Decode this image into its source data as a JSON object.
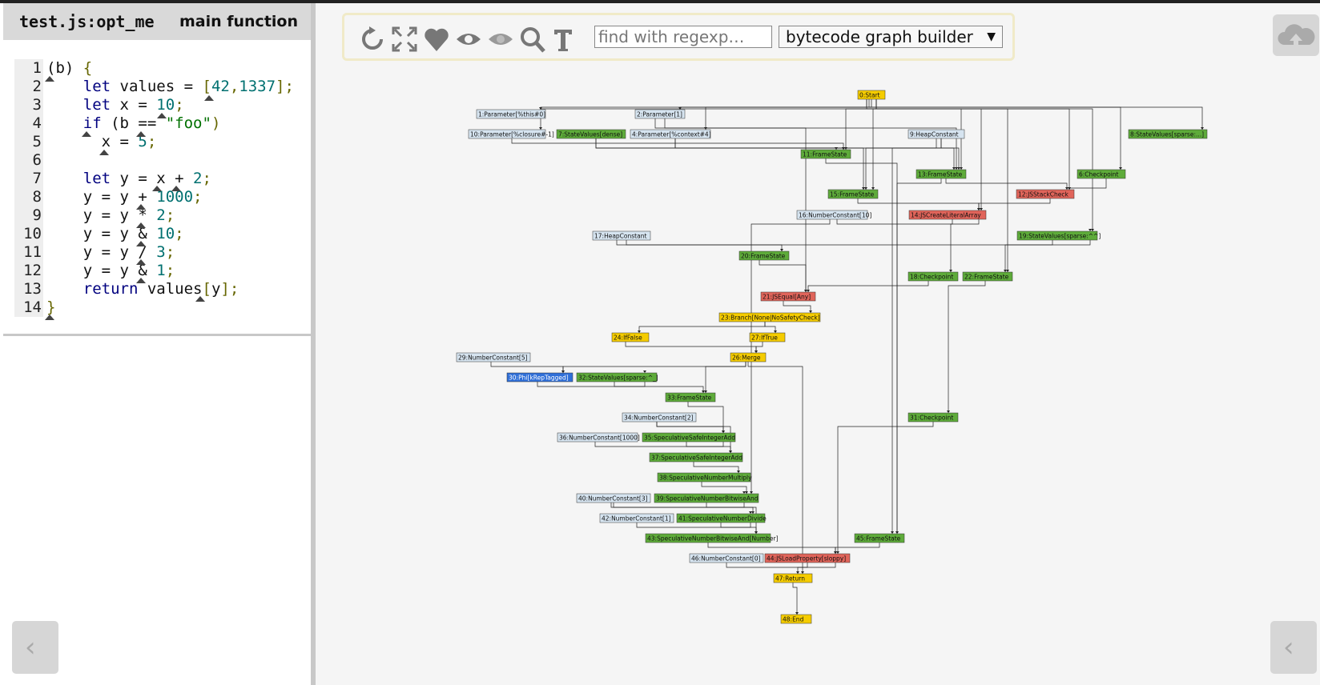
{
  "source": {
    "title": "test.js:opt_me",
    "kind": "main function",
    "lines": [
      {
        "n": "1"
      },
      {
        "n": "2"
      },
      {
        "n": "3"
      },
      {
        "n": "4"
      },
      {
        "n": "5"
      },
      {
        "n": "6"
      },
      {
        "n": "7"
      },
      {
        "n": "8"
      },
      {
        "n": "9"
      },
      {
        "n": "10"
      },
      {
        "n": "11"
      },
      {
        "n": "12"
      },
      {
        "n": "13"
      },
      {
        "n": "14"
      }
    ],
    "code_tokens": {
      "l1": [
        "(b) ",
        "{"
      ],
      "l2": [
        "let",
        " values = ",
        "[",
        "42",
        ",",
        "1337",
        "];"
      ],
      "l3": [
        "let",
        " x = ",
        "10",
        ";"
      ],
      "l4": [
        "if",
        " (b == ",
        "\"foo\"",
        ")"
      ],
      "l5": [
        "x = ",
        "5",
        ";"
      ],
      "l7": [
        "let",
        " y = x + ",
        "2",
        ";"
      ],
      "l8": [
        "y = y + ",
        "1000",
        ";"
      ],
      "l9": [
        "y = y * ",
        "2",
        ";"
      ],
      "l10": [
        "y = y & ",
        "10",
        ";"
      ],
      "l11": [
        "y = y / ",
        "3",
        ";"
      ],
      "l12": [
        "y = y & ",
        "1",
        ";"
      ],
      "l13": [
        "return",
        " values",
        "[",
        "y",
        "];"
      ],
      "l14": [
        "}"
      ]
    }
  },
  "toolbar": {
    "icons": [
      "refresh-icon",
      "fit-icon",
      "heart-icon",
      "eye-icon",
      "eye-hidden-icon",
      "search-icon",
      "type-icon"
    ],
    "search_placeholder": "find with regexp…",
    "phase_selected": "bytecode graph builder",
    "phase_arrow": "▼"
  },
  "nav": {
    "left_label": "‹",
    "right_label": "‹"
  },
  "colors": {
    "start": "#f5cc00",
    "light": "#d6e4f0",
    "green": "#5eab3a",
    "red": "#e0645a",
    "blue": "#2f6fd8"
  },
  "graph": {
    "nodes": [
      {
        "id": "0",
        "label": "0:Start",
        "c": "start"
      },
      {
        "id": "1",
        "label": "1:Parameter[%this#0]",
        "c": "light"
      },
      {
        "id": "2",
        "label": "2:Parameter[1]",
        "c": "light"
      },
      {
        "id": "10",
        "label": "10:Parameter[%closure#-1]",
        "c": "light"
      },
      {
        "id": "7",
        "label": "7:StateValues[dense]",
        "c": "green"
      },
      {
        "id": "4",
        "label": "4:Parameter[%context#4]",
        "c": "light"
      },
      {
        "id": "9",
        "label": "9:HeapConstant",
        "c": "light"
      },
      {
        "id": "8",
        "label": "8:StateValues[sparse:...]",
        "c": "green"
      },
      {
        "id": "11",
        "label": "11:FrameState",
        "c": "green"
      },
      {
        "id": "13",
        "label": "13:FrameState",
        "c": "green"
      },
      {
        "id": "6",
        "label": "6:Checkpoint",
        "c": "green"
      },
      {
        "id": "15",
        "label": "15:FrameState",
        "c": "green"
      },
      {
        "id": "12",
        "label": "12:JSStackCheck",
        "c": "red"
      },
      {
        "id": "16",
        "label": "16:NumberConstant[10]",
        "c": "light"
      },
      {
        "id": "14",
        "label": "14:JSCreateLiteralArray",
        "c": "red"
      },
      {
        "id": "17",
        "label": "17:HeapConstant",
        "c": "light"
      },
      {
        "id": "19",
        "label": "19:StateValues[sparse:^^]",
        "c": "green"
      },
      {
        "id": "20",
        "label": "20:FrameState",
        "c": "green"
      },
      {
        "id": "18",
        "label": "18:Checkpoint",
        "c": "green"
      },
      {
        "id": "22",
        "label": "22:FrameState",
        "c": "green"
      },
      {
        "id": "21",
        "label": "21:JSEqual[Any]",
        "c": "red"
      },
      {
        "id": "23",
        "label": "23:Branch[None|NoSafetyCheck]",
        "c": "start"
      },
      {
        "id": "24",
        "label": "24:IfFalse",
        "c": "start"
      },
      {
        "id": "27",
        "label": "27:IfTrue",
        "c": "start"
      },
      {
        "id": "26",
        "label": "26:Merge",
        "c": "start"
      },
      {
        "id": "29",
        "label": "29:NumberConstant[5]",
        "c": "light"
      },
      {
        "id": "30",
        "label": "30:Phi[kRepTagged]",
        "c": "blue"
      },
      {
        "id": "32",
        "label": "32:StateValues[sparse:^_]",
        "c": "green"
      },
      {
        "id": "33",
        "label": "33:FrameState",
        "c": "green"
      },
      {
        "id": "34",
        "label": "34:NumberConstant[2]",
        "c": "light"
      },
      {
        "id": "31",
        "label": "31:Checkpoint",
        "c": "green"
      },
      {
        "id": "36",
        "label": "36:NumberConstant[1000]",
        "c": "light"
      },
      {
        "id": "35",
        "label": "35:SpeculativeSafeIntegerAdd",
        "c": "green"
      },
      {
        "id": "37",
        "label": "37:SpeculativeSafeIntegerAdd",
        "c": "green"
      },
      {
        "id": "38",
        "label": "38:SpeculativeNumberMultiply",
        "c": "green"
      },
      {
        "id": "40",
        "label": "40:NumberConstant[3]",
        "c": "light"
      },
      {
        "id": "39",
        "label": "39:SpeculativeNumberBitwiseAnd",
        "c": "green"
      },
      {
        "id": "42",
        "label": "42:NumberConstant[1]",
        "c": "light"
      },
      {
        "id": "41",
        "label": "41:SpeculativeNumberDivide",
        "c": "green"
      },
      {
        "id": "43",
        "label": "43:SpeculativeNumberBitwiseAnd[Number]",
        "c": "green"
      },
      {
        "id": "45",
        "label": "45:FrameState",
        "c": "green"
      },
      {
        "id": "46",
        "label": "46:NumberConstant[0]",
        "c": "light"
      },
      {
        "id": "44",
        "label": "44:JSLoadProperty[sloppy]",
        "c": "red"
      },
      {
        "id": "47",
        "label": "47:Return",
        "c": "start"
      },
      {
        "id": "48",
        "label": "48:End",
        "c": "start"
      }
    ]
  }
}
